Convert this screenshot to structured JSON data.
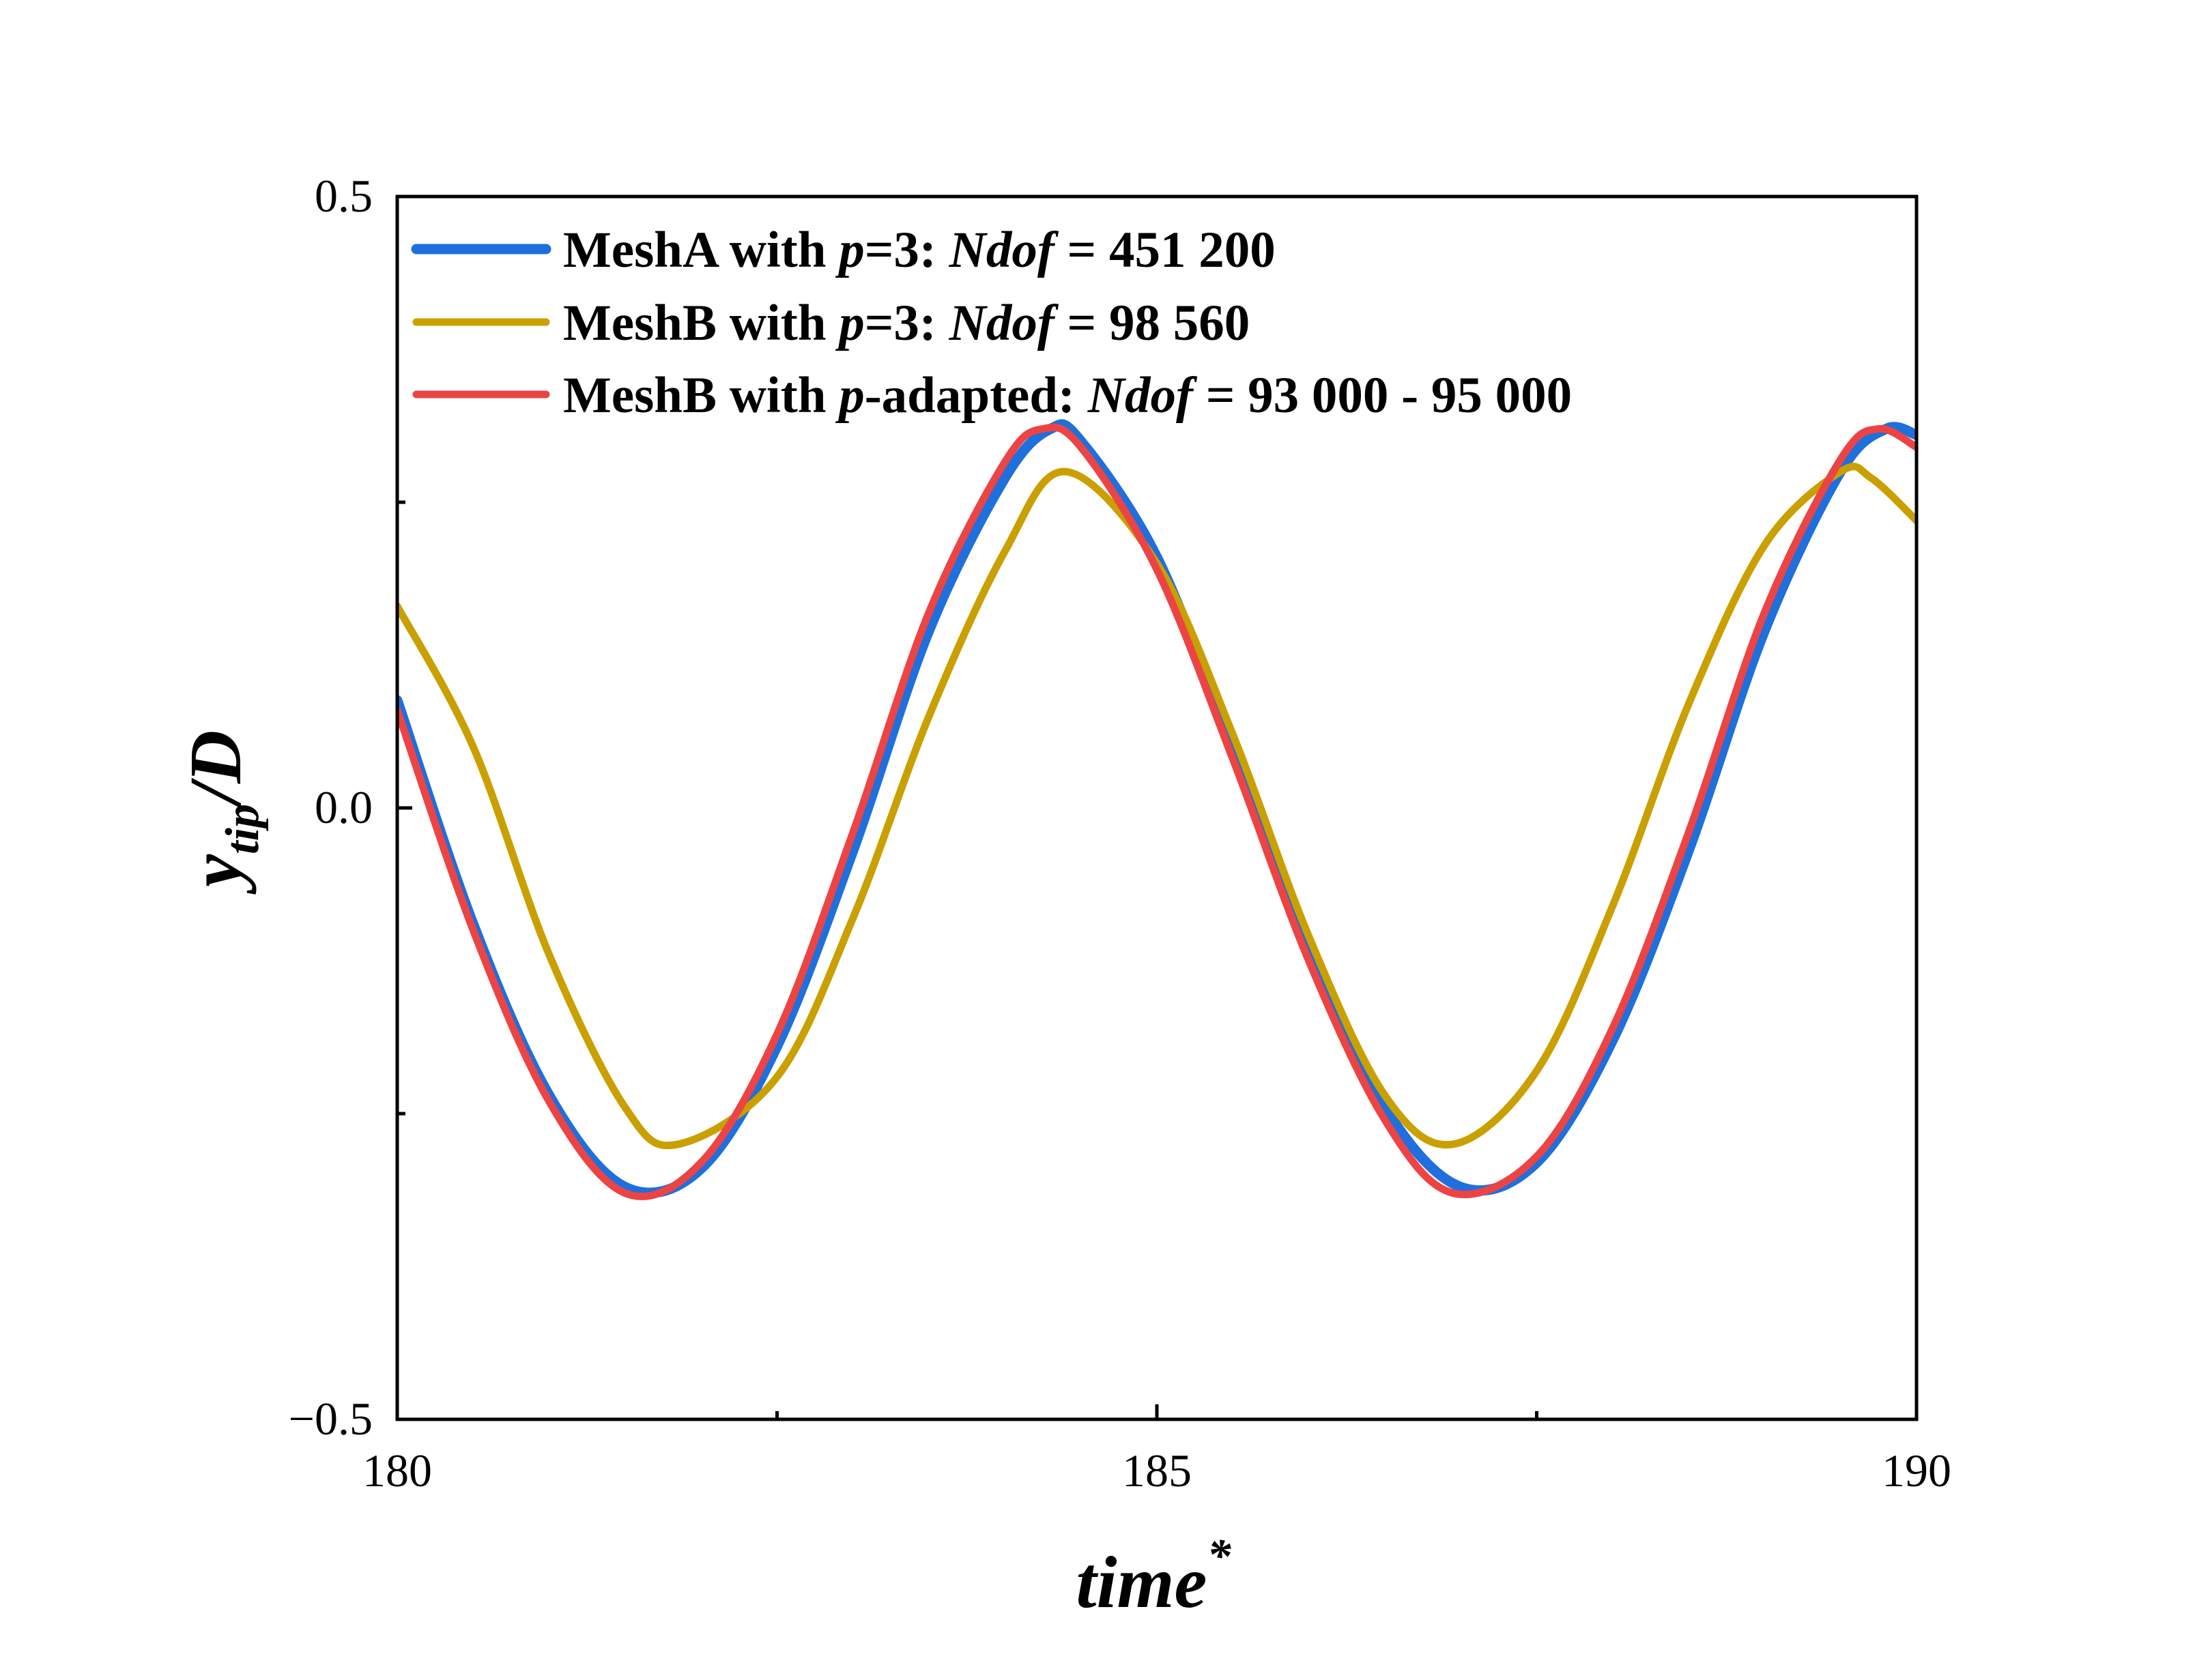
{
  "chart_data": {
    "type": "line",
    "title": "",
    "xlabel": "time",
    "xlabel_superscript": "*",
    "ylabel_main": "y",
    "ylabel_sub": "tip",
    "ylabel_tail": "/D",
    "xlim": [
      180,
      190
    ],
    "ylim": [
      -0.5,
      0.5
    ],
    "xticks": [
      180,
      185,
      190
    ],
    "xtick_labels": [
      "180",
      "185",
      "190"
    ],
    "xminor_ticks": [
      182.5,
      187.5
    ],
    "yticks": [
      -0.5,
      0.0,
      0.5
    ],
    "ytick_labels": [
      "−0.5",
      "0.0",
      "0.5"
    ],
    "yminor_ticks": [
      -0.25,
      0.25
    ],
    "grid": false,
    "legend_position": "top-left",
    "series": [
      {
        "name": "MeshA with p=3: Ndof = 451 200",
        "legend_parts": [
          {
            "text": "MeshA with ",
            "italic": false
          },
          {
            "text": "p",
            "italic": true
          },
          {
            "text": "=3: ",
            "italic": false
          },
          {
            "text": "Ndof",
            "italic": true
          },
          {
            "text": " = 451 200",
            "italic": false
          }
        ],
        "color": "#1f6fdc",
        "stroke_weight": "heavy",
        "x": [
          180.0,
          180.5,
          181.0,
          181.5,
          182.0,
          182.5,
          183.0,
          183.5,
          184.0,
          184.3,
          184.5,
          185.0,
          185.5,
          186.0,
          186.5,
          187.0,
          187.5,
          188.0,
          188.5,
          189.0,
          189.5,
          189.8,
          190.0
        ],
        "y": [
          0.088,
          -0.095,
          -0.235,
          -0.31,
          -0.295,
          -0.195,
          -0.035,
          0.145,
          0.27,
          0.31,
          0.3,
          0.205,
          0.05,
          -0.115,
          -0.245,
          -0.31,
          -0.29,
          -0.19,
          -0.035,
          0.145,
          0.275,
          0.31,
          0.305
        ]
      },
      {
        "name": "MeshB with p=3: Ndof = 98 560",
        "legend_parts": [
          {
            "text": "MeshB with ",
            "italic": false
          },
          {
            "text": "p",
            "italic": true
          },
          {
            "text": "=3: ",
            "italic": false
          },
          {
            "text": "Ndof",
            "italic": true
          },
          {
            "text": " = 98 560",
            "italic": false
          }
        ],
        "color": "#c9a000",
        "stroke_weight": "normal",
        "x": [
          180.0,
          180.5,
          181.0,
          181.5,
          181.85,
          182.5,
          183.0,
          183.5,
          184.0,
          184.4,
          185.0,
          185.5,
          186.0,
          186.5,
          186.95,
          187.5,
          188.0,
          188.5,
          189.0,
          189.5,
          189.7,
          190.0
        ],
        "y": [
          0.165,
          0.05,
          -0.12,
          -0.245,
          -0.275,
          -0.22,
          -0.09,
          0.075,
          0.21,
          0.275,
          0.2,
          0.06,
          -0.105,
          -0.235,
          -0.275,
          -0.215,
          -0.08,
          0.085,
          0.215,
          0.275,
          0.27,
          0.235
        ]
      },
      {
        "name": "MeshB with p-adapted: Ndof = 93 000 - 95 000",
        "legend_parts": [
          {
            "text": "MeshB with ",
            "italic": false
          },
          {
            "text": "p",
            "italic": true
          },
          {
            "text": "-adapted: ",
            "italic": false
          },
          {
            "text": "Ndof",
            "italic": true
          },
          {
            "text": " = 93 000 - 95 000",
            "italic": false
          }
        ],
        "color": "#ec4444",
        "stroke_weight": "normal",
        "x": [
          180.0,
          180.5,
          181.0,
          181.5,
          182.0,
          182.5,
          183.0,
          183.5,
          184.0,
          184.25,
          184.5,
          185.0,
          185.5,
          186.0,
          186.5,
          186.95,
          187.5,
          188.0,
          188.5,
          189.0,
          189.5,
          189.75,
          190.0
        ],
        "y": [
          0.08,
          -0.1,
          -0.24,
          -0.315,
          -0.29,
          -0.185,
          -0.02,
          0.16,
          0.283,
          0.31,
          0.295,
          0.195,
          0.04,
          -0.125,
          -0.255,
          -0.315,
          -0.285,
          -0.18,
          -0.02,
          0.16,
          0.285,
          0.31,
          0.295
        ]
      }
    ]
  }
}
